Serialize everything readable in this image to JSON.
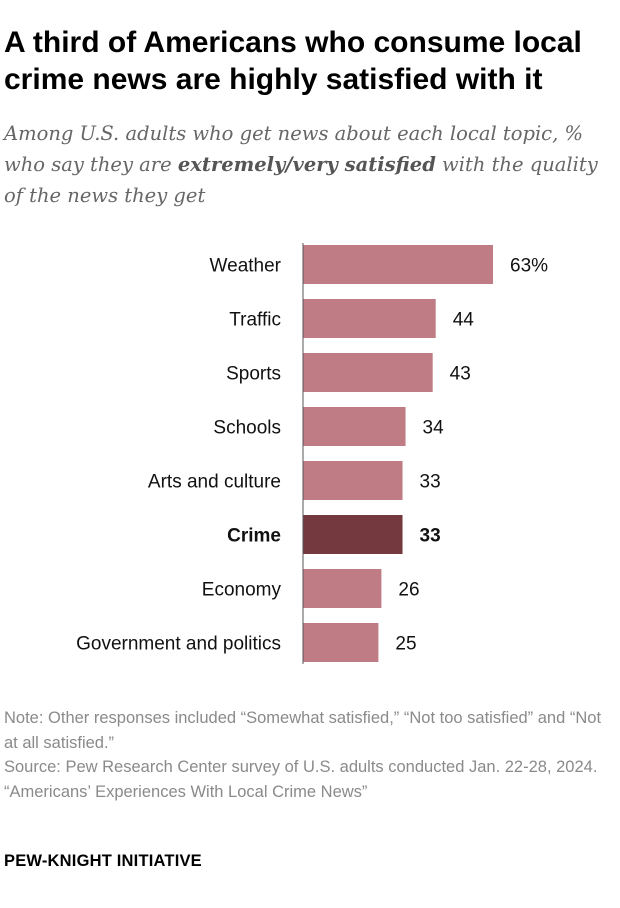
{
  "header": {
    "title": "A third of Americans who consume local crime news are highly satisfied with it",
    "subtitle_before": "Among U.S. adults who get news about each local topic, % who say they are ",
    "subtitle_emphasis": "extremely/very satisfied",
    "subtitle_after": " with the quality of the news they get"
  },
  "chart_data": {
    "type": "bar",
    "orientation": "horizontal",
    "categories": [
      "Weather",
      "Traffic",
      "Sports",
      "Schools",
      "Arts and culture",
      "Crime",
      "Economy",
      "Government and politics"
    ],
    "values": [
      63,
      44,
      43,
      34,
      33,
      33,
      26,
      25
    ],
    "value_labels": [
      "63%",
      "44",
      "43",
      "34",
      "33",
      "33",
      "26",
      "25"
    ],
    "highlight": "Crime",
    "colors": {
      "bar": "#bf7c85",
      "highlight_bar": "#73393f",
      "axis": "#555555"
    },
    "xlim": [
      0,
      63
    ],
    "grid": false,
    "legend": "none"
  },
  "footer": {
    "note": "Note: Other responses included “Somewhat satisfied,” “Not too satisfied” and “Not at all satisfied.”",
    "source": "Source: Pew Research Center survey of U.S. adults conducted Jan. 22-28, 2024.",
    "report": "“Americans’ Experiences With Local Crime News”",
    "brand": "PEW-KNIGHT INITIATIVE"
  }
}
